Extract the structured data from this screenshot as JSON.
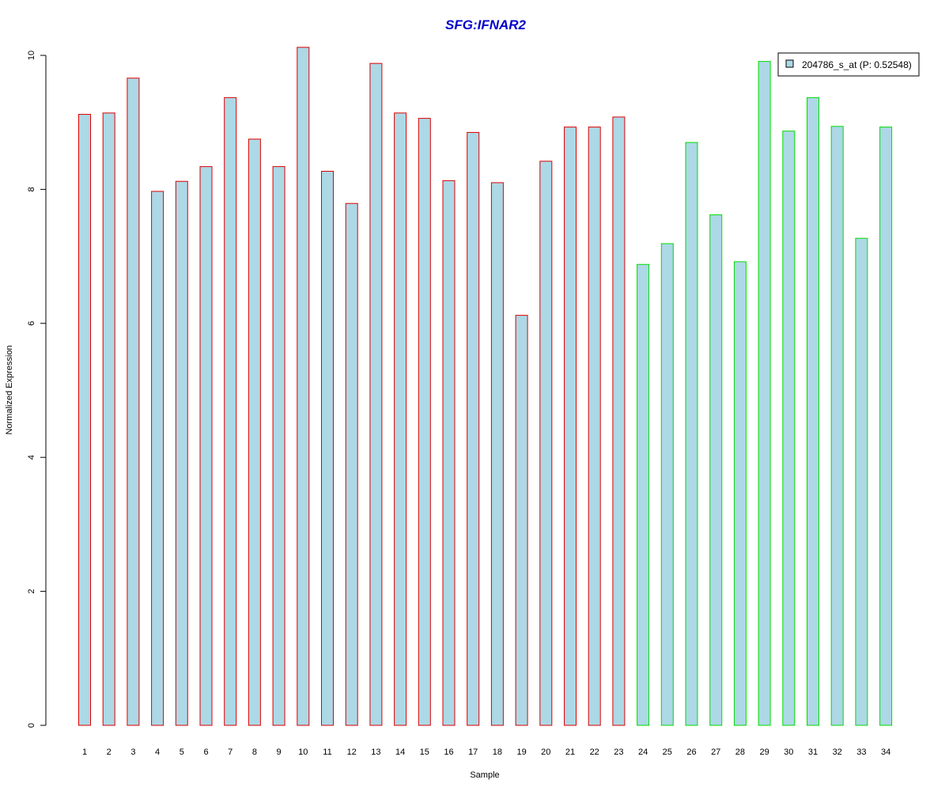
{
  "chart_data": {
    "type": "bar",
    "title": "SFG:IFNAR2",
    "xlabel": "Sample",
    "ylabel": "Normalized Expression",
    "ylim": [
      0,
      10
    ],
    "yticks": [
      "0",
      "2",
      "4",
      "6",
      "8",
      "10"
    ],
    "categories": [
      "1",
      "2",
      "3",
      "4",
      "5",
      "6",
      "7",
      "8",
      "9",
      "10",
      "11",
      "12",
      "13",
      "14",
      "15",
      "16",
      "17",
      "18",
      "19",
      "20",
      "21",
      "22",
      "23",
      "24",
      "25",
      "26",
      "27",
      "28",
      "29",
      "30",
      "31",
      "32",
      "33",
      "34"
    ],
    "values": [
      9.12,
      9.14,
      9.66,
      7.97,
      8.12,
      8.34,
      9.37,
      8.75,
      8.34,
      10.12,
      8.27,
      7.79,
      9.88,
      9.14,
      9.06,
      8.13,
      8.85,
      8.1,
      6.12,
      8.42,
      8.93,
      8.93,
      9.08,
      6.88,
      7.19,
      8.7,
      7.62,
      6.92,
      9.91,
      8.87,
      9.37,
      8.94,
      7.27,
      8.93
    ],
    "group_border_colors": [
      "#dd0000",
      "#dd0000",
      "#dd0000",
      "#dd0000",
      "#dd0000",
      "#dd0000",
      "#dd0000",
      "#dd0000",
      "#dd0000",
      "#dd0000",
      "#dd0000",
      "#dd0000",
      "#dd0000",
      "#dd0000",
      "#dd0000",
      "#dd0000",
      "#dd0000",
      "#dd0000",
      "#dd0000",
      "#dd0000",
      "#dd0000",
      "#dd0000",
      "#dd0000",
      "#00dd00",
      "#00dd00",
      "#00dd00",
      "#00dd00",
      "#00dd00",
      "#00dd00",
      "#00dd00",
      "#00dd00",
      "#00dd00",
      "#00dd00",
      "#00dd00"
    ],
    "bar_fill": "#add8e6",
    "title_color": "#0000cc",
    "legend": {
      "label": "204786_s_at (P: 0.52548)",
      "position": "top-right"
    },
    "grid": false
  }
}
